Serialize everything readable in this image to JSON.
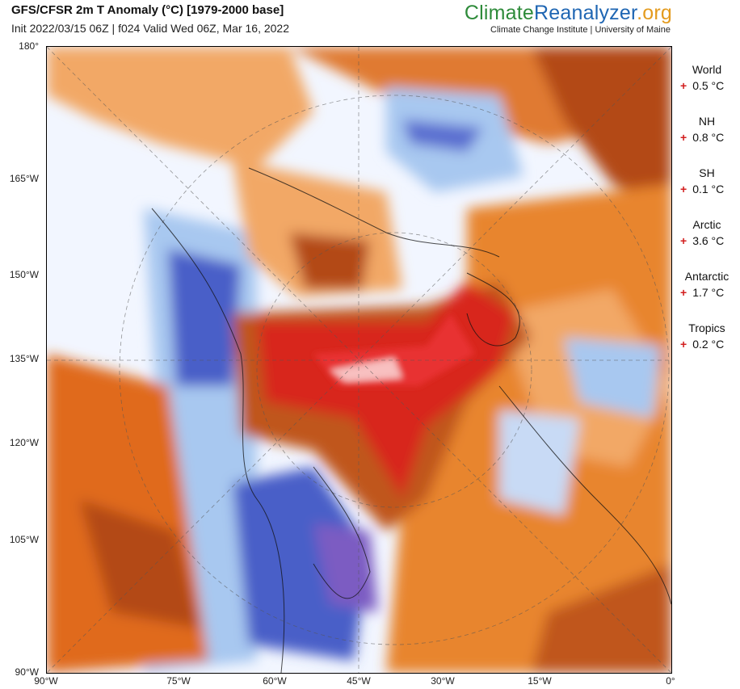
{
  "header": {
    "title": "GFS/CFSR 2m T Anomaly (°C) [1979-2000 base]",
    "subtitle": "Init 2022/03/15 06Z | f024 Valid Wed 06Z, Mar 16, 2022"
  },
  "brand": {
    "part1": "Climate",
    "part2": "Reanalyzer",
    "part3": ".org",
    "tagline": "Climate Change Institute | University of Maine",
    "colors": {
      "part1": "#2e8b3a",
      "part2": "#1f66b3",
      "part3": "#e49b1e"
    }
  },
  "axes": {
    "left": [
      "180°",
      "165°W",
      "150°W",
      "135°W",
      "120°W",
      "105°W",
      "90°W"
    ],
    "bottom": [
      "90°W",
      "75°W",
      "60°W",
      "45°W",
      "30°W",
      "15°W",
      "0°"
    ]
  },
  "stats": [
    {
      "region": "World",
      "sign": "+",
      "value": "0.5 °C"
    },
    {
      "region": "NH",
      "sign": "+",
      "value": "0.8 °C"
    },
    {
      "region": "SH",
      "sign": "+",
      "value": "0.1 °C"
    },
    {
      "region": "Arctic",
      "sign": "+",
      "value": "3.6 °C"
    },
    {
      "region": "Antarctic",
      "sign": "+",
      "value": "1.7 °C"
    },
    {
      "region": "Tropics",
      "sign": "+",
      "value": "0.2 °C"
    }
  ],
  "palette": {
    "hot": "#e01010",
    "warm": "#e06a1a",
    "mild": "#f2a866",
    "cool": "#a8c8f0",
    "cold": "#4a5ec8",
    "very_cold": "#8a5cc0"
  }
}
